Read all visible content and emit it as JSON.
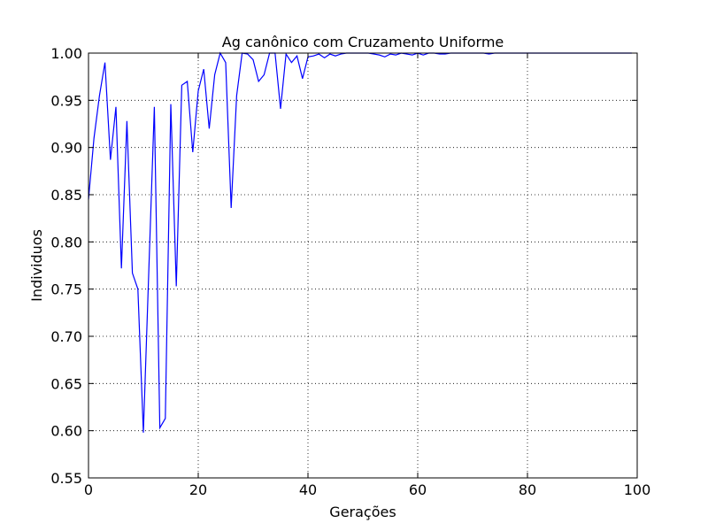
{
  "chart_data": {
    "type": "line",
    "title": "Ag canônico com Cruzamento Uniforme",
    "xlabel": "Gerações",
    "ylabel": "Individuos",
    "xlim": [
      0,
      100
    ],
    "ylim": [
      0.55,
      1.0
    ],
    "xticks": [
      0,
      20,
      40,
      60,
      80,
      100
    ],
    "xtick_labels": [
      "0",
      "20",
      "40",
      "60",
      "80",
      "100"
    ],
    "yticks": [
      0.55,
      0.6,
      0.65,
      0.7,
      0.75,
      0.8,
      0.85,
      0.9,
      0.95,
      1.0
    ],
    "ytick_labels": [
      "0.55",
      "0.60",
      "0.65",
      "0.70",
      "0.75",
      "0.80",
      "0.85",
      "0.90",
      "0.95",
      "1.00"
    ],
    "grid": true,
    "series": [
      {
        "color": "#0000ff",
        "x": [
          0,
          1,
          2,
          3,
          4,
          5,
          6,
          7,
          8,
          9,
          10,
          11,
          12,
          13,
          14,
          15,
          16,
          17,
          18,
          19,
          20,
          21,
          22,
          23,
          24,
          25,
          26,
          27,
          28,
          29,
          30,
          31,
          32,
          33,
          34,
          35,
          36,
          37,
          38,
          39,
          40,
          41,
          42,
          43,
          44,
          45,
          46,
          47,
          48,
          49,
          50,
          51,
          52,
          53,
          54,
          55,
          56,
          57,
          58,
          59,
          60,
          61,
          62,
          63,
          64,
          65,
          66,
          67,
          68,
          69,
          70,
          71,
          72,
          73,
          74,
          75,
          76,
          77,
          78,
          79,
          80,
          81,
          82,
          83,
          84,
          85,
          86,
          87,
          88,
          89,
          90,
          91,
          92,
          93,
          94,
          95,
          96,
          97,
          98,
          99
        ],
        "values": [
          0.845,
          0.91,
          0.955,
          0.99,
          0.887,
          0.943,
          0.772,
          0.928,
          0.767,
          0.75,
          0.598,
          0.771,
          0.943,
          0.603,
          0.613,
          0.946,
          0.753,
          0.966,
          0.97,
          0.895,
          0.96,
          0.983,
          0.92,
          0.977,
          1.0,
          0.99,
          0.836,
          0.955,
          1.0,
          0.999,
          0.993,
          0.97,
          0.977,
          1.0,
          1.0,
          0.941,
          0.999,
          0.99,
          0.997,
          0.973,
          0.996,
          0.997,
          0.999,
          0.995,
          0.999,
          0.997,
          0.999,
          1.0,
          1.0,
          1.0,
          1.0,
          1.0,
          0.999,
          0.998,
          0.996,
          0.999,
          0.998,
          1.0,
          0.999,
          0.998,
          1.0,
          0.998,
          1.0,
          1.0,
          0.999,
          0.999,
          1.0,
          1.0,
          1.0,
          1.0,
          1.0,
          1.0,
          1.0,
          0.999,
          1.0,
          1.0,
          1.0,
          1.0,
          1.0,
          1.0,
          1.0,
          1.0,
          1.0,
          1.0,
          1.0,
          1.0,
          1.0,
          1.0,
          1.0,
          1.0,
          1.0,
          1.0,
          1.0,
          1.0,
          1.0,
          1.0,
          1.0,
          1.0,
          1.0,
          1.0
        ]
      }
    ]
  }
}
